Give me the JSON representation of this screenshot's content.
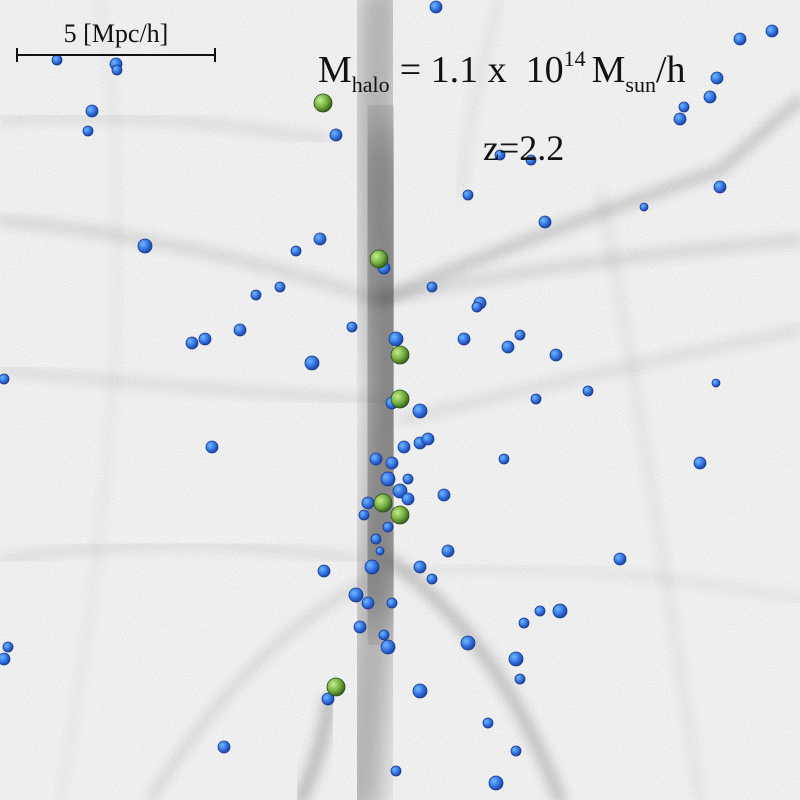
{
  "scale_bar": {
    "label": "5 [Mpc/h]"
  },
  "annotation": {
    "mass": {
      "symbol": "M",
      "subscript": "halo",
      "equals": "= 1.1 x  10",
      "exponent": "14",
      "unit_symbol": "M",
      "unit_subscript": "sun",
      "unit_suffix": "/h"
    },
    "redshift": "z=2.2"
  }
}
